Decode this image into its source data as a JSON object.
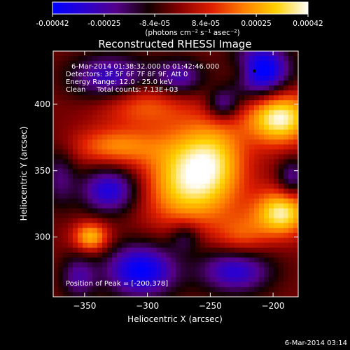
{
  "colorbar": {
    "tick_labels": [
      "-0.00042",
      "-0.00025",
      "-8.4e-05",
      "8.4e-05",
      "0.00025",
      "0.00042"
    ],
    "tick_values": [
      -0.00042,
      -0.00025,
      -8.4e-05,
      8.4e-05,
      0.00025,
      0.00042
    ],
    "range": [
      -0.00042,
      0.00042
    ],
    "units_text": "(photons cm⁻² s⁻¹ asec⁻²)",
    "colormap": [
      "#0000ff",
      "#2a00d0",
      "#55008a",
      "#120000",
      "#8a0000",
      "#e02000",
      "#ff8000",
      "#ffd000",
      "#ffffff"
    ]
  },
  "chart_data": {
    "type": "heatmap",
    "title": "Reconstructed RHESSI Image",
    "xlabel": "Heliocentric X (arcsec)",
    "ylabel": "Heliocentric Y (arcsec)",
    "xlim": [
      -375,
      -180
    ],
    "ylim": [
      255,
      440
    ],
    "xticks": [
      -350,
      -300,
      -250,
      -200
    ],
    "yticks": [
      300,
      350,
      400
    ],
    "xtick_labels": [
      "−350",
      "−300",
      "−250",
      "−200"
    ],
    "ytick_labels": [
      "300",
      "350",
      "400"
    ],
    "annotations": [
      "6-Mar-2014 01:38:32.000 to 01:42:46.000",
      "Detectors: 3F 5F 6F 7F 8F 9F, Att 0",
      "Energy Range: 12.0 - 25.0 keV",
      "Clean     Total counts: 7.13E+03"
    ],
    "peak_label": "Position of Peak = [-200,378]",
    "peak_position": [
      -200,
      378
    ],
    "sources": [
      {
        "x": -195,
        "y": 390,
        "sx": 18,
        "sy": 14,
        "amp": 1.05
      },
      {
        "x": -193,
        "y": 318,
        "sx": 15,
        "sy": 12,
        "amp": 0.95
      },
      {
        "x": -270,
        "y": 350,
        "sx": 22,
        "sy": 25,
        "amp": 0.65
      },
      {
        "x": -245,
        "y": 360,
        "sx": 18,
        "sy": 22,
        "amp": 0.55
      },
      {
        "x": -325,
        "y": 368,
        "sx": 24,
        "sy": 10,
        "amp": 0.55
      },
      {
        "x": -305,
        "y": 400,
        "sx": 25,
        "sy": 12,
        "amp": 0.45
      },
      {
        "x": -345,
        "y": 300,
        "sx": 10,
        "sy": 8,
        "amp": 0.75
      },
      {
        "x": -225,
        "y": 300,
        "sx": 15,
        "sy": 12,
        "amp": 0.4
      },
      {
        "x": -225,
        "y": 425,
        "sx": 10,
        "sy": 8,
        "amp": 0.35
      },
      {
        "x": -265,
        "y": 330,
        "sx": 30,
        "sy": 20,
        "amp": 0.3
      },
      {
        "x": -210,
        "y": 425,
        "sx": 16,
        "sy": 14,
        "amp": -1.1
      },
      {
        "x": -330,
        "y": 335,
        "sx": 16,
        "sy": 12,
        "amp": -0.8
      },
      {
        "x": -305,
        "y": 275,
        "sx": 20,
        "sy": 14,
        "amp": -0.95
      },
      {
        "x": -230,
        "y": 275,
        "sx": 20,
        "sy": 12,
        "amp": -0.75
      },
      {
        "x": -330,
        "y": 420,
        "sx": 22,
        "sy": 12,
        "amp": -0.7
      },
      {
        "x": -275,
        "y": 420,
        "sx": 14,
        "sy": 10,
        "amp": -0.6
      },
      {
        "x": -355,
        "y": 270,
        "sx": 10,
        "sy": 12,
        "amp": -0.5
      },
      {
        "x": -240,
        "y": 400,
        "sx": 9,
        "sy": 8,
        "amp": -0.55
      },
      {
        "x": -270,
        "y": 300,
        "sx": 9,
        "sy": 8,
        "amp": -0.4
      },
      {
        "x": -185,
        "y": 345,
        "sx": 8,
        "sy": 10,
        "amp": -0.5
      },
      {
        "x": -370,
        "y": 345,
        "sx": 9,
        "sy": 16,
        "amp": -0.4
      }
    ],
    "grid": false
  },
  "footer": {
    "timestamp": "6-Mar-2014 03:14"
  }
}
